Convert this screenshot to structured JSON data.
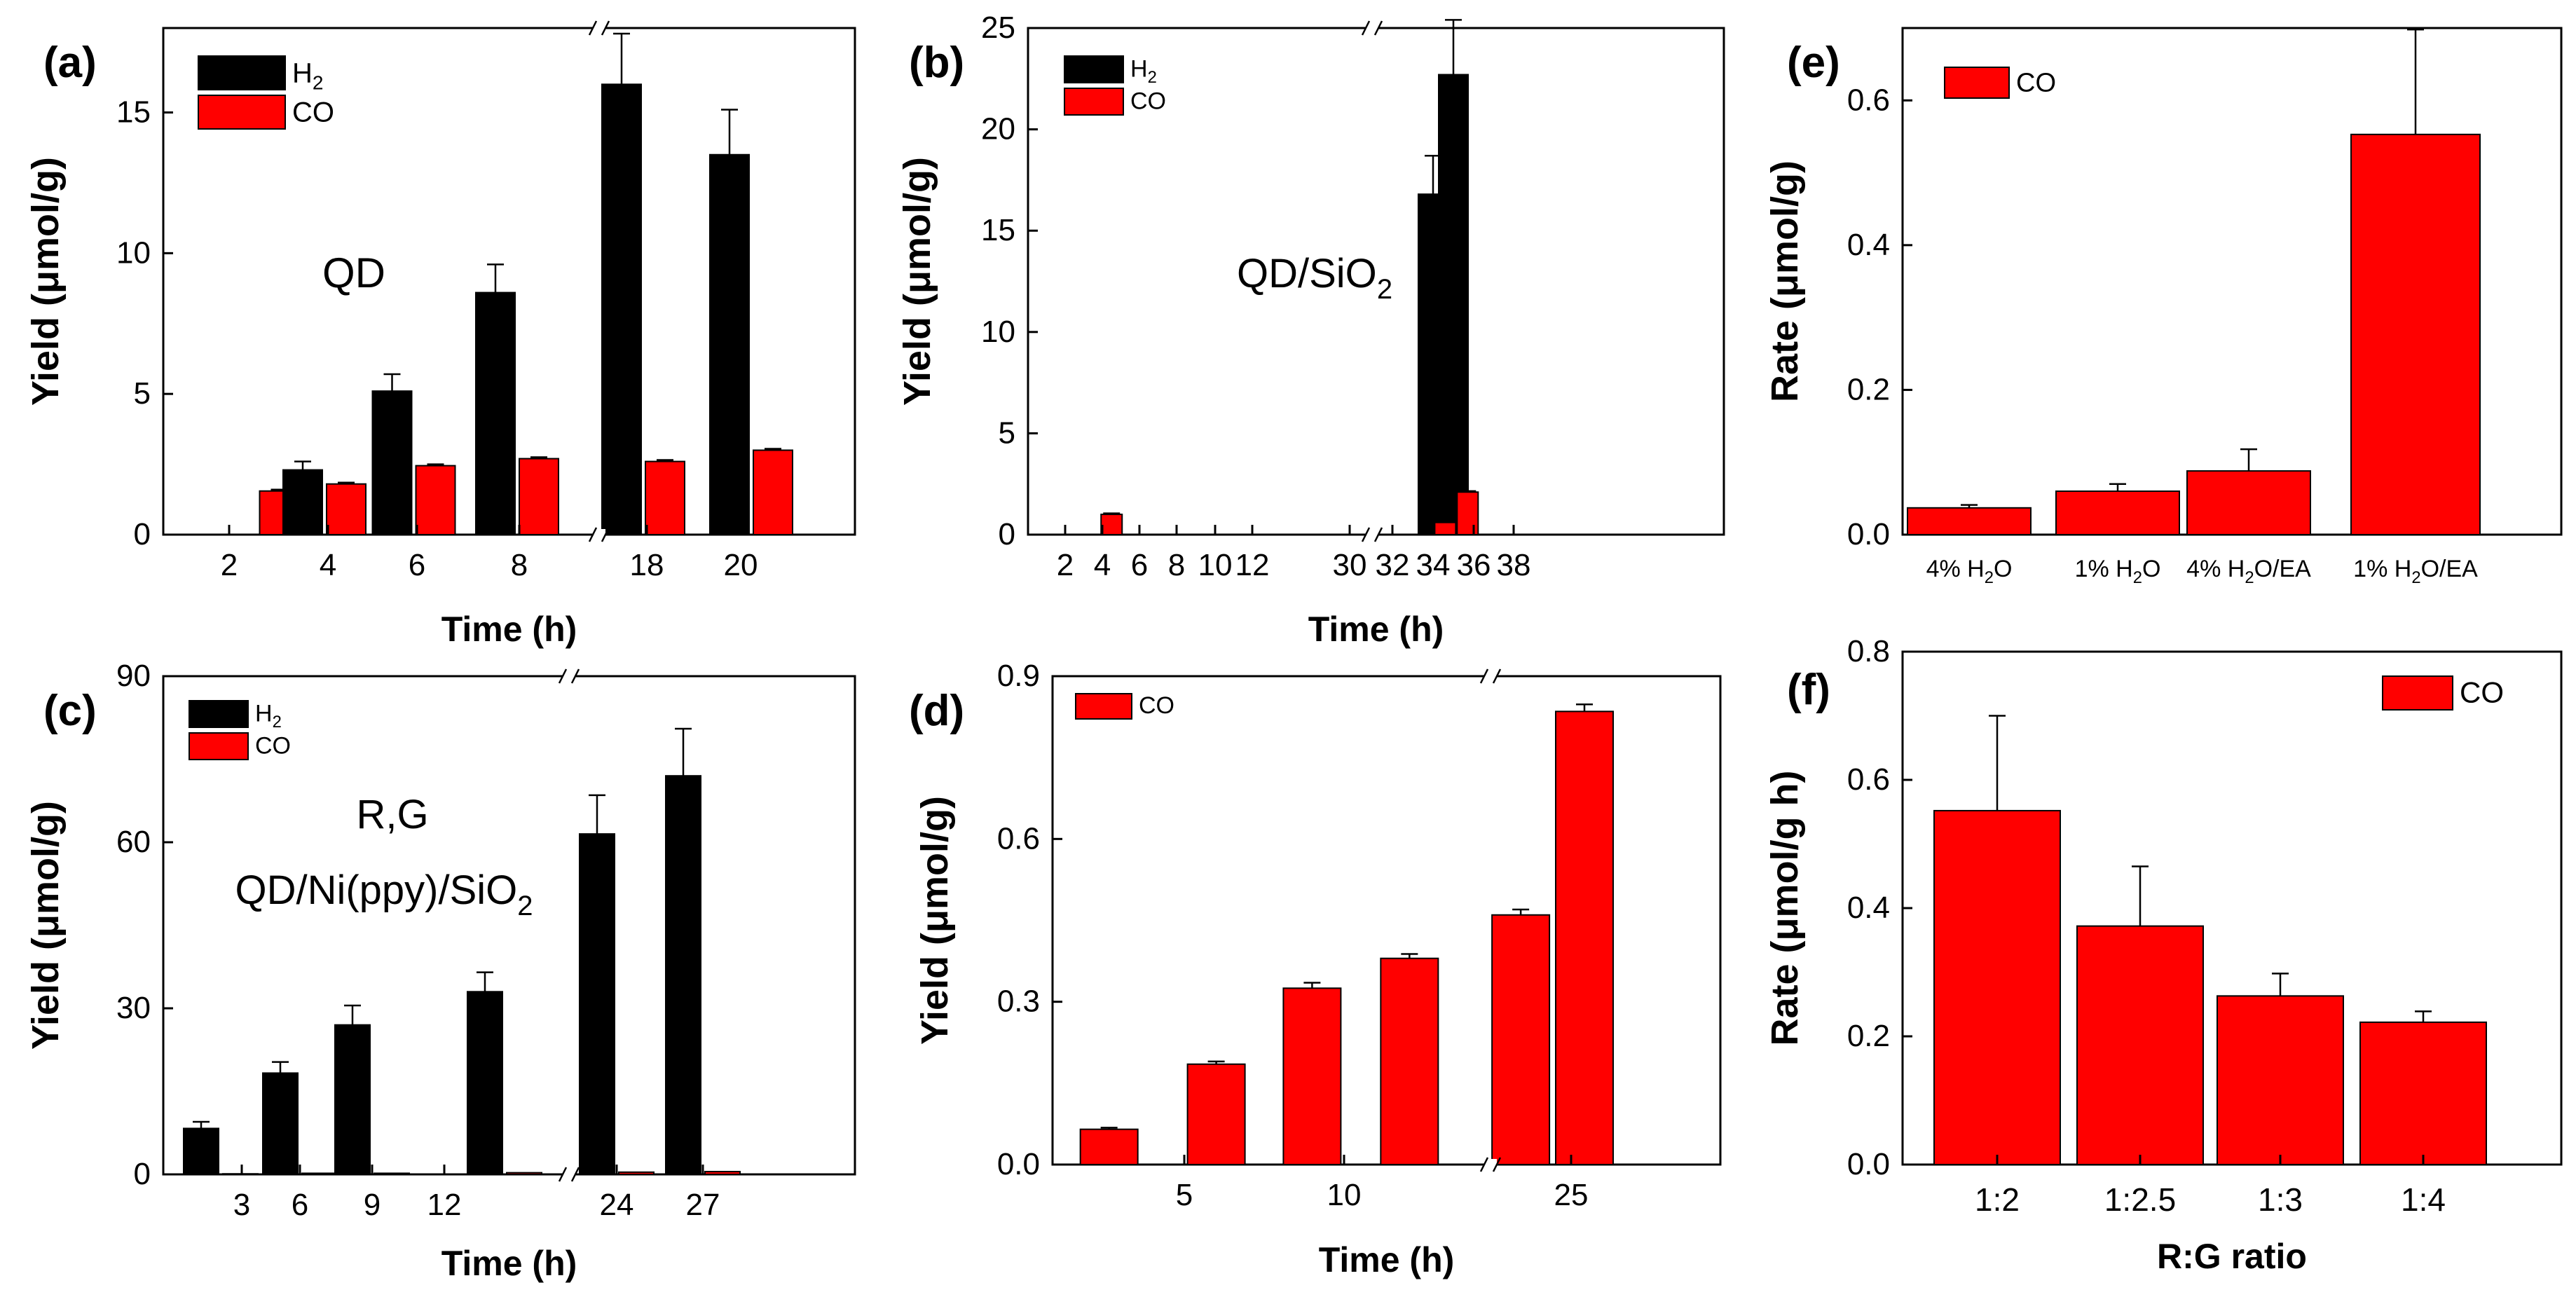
{
  "figure": {
    "colors": {
      "h2": "#000000",
      "co": "#ff0000",
      "axis": "#000000",
      "error": "#000000"
    },
    "subplots": {
      "a": {
        "label": "(a)",
        "annotation": "QD"
      },
      "b": {
        "label": "(b)",
        "annotation_main": "QD/SiO",
        "annotation_sub": "2"
      },
      "c": {
        "label": "(c)",
        "annotation_line1": "R,G",
        "annotation_line2_main": "QD/Ni(ppy)/SiO",
        "annotation_line2_sub": "2"
      },
      "d": {
        "label": "(d)"
      },
      "e": {
        "label": "(e)"
      },
      "f": {
        "label": "(f)"
      }
    }
  },
  "chart_data": [
    {
      "id": "a",
      "type": "bar",
      "title": "",
      "xlabel": "Time (h)",
      "ylabel": "Yield (μmol/g)",
      "ylim": [
        0,
        18
      ],
      "yticks": [
        0,
        5,
        10,
        15
      ],
      "axis_break": "between 8 and 18",
      "categories": [
        "2",
        "4",
        "6",
        "8",
        "18",
        "20"
      ],
      "legend_position": "top-left",
      "series": [
        {
          "name": "H2",
          "color": "#000000",
          "values": [
            0,
            2.3,
            5.1,
            8.6,
            16.0,
            13.5
          ],
          "errors": [
            0,
            0.3,
            0.6,
            1.0,
            1.8,
            1.6
          ]
        },
        {
          "name": "CO",
          "color": "#ff0000",
          "values": [
            1.55,
            1.8,
            2.45,
            2.7,
            2.6,
            3.0
          ],
          "errors": [
            0.05,
            0.05,
            0.05,
            0.05,
            0.05,
            0.05
          ]
        }
      ]
    },
    {
      "id": "b",
      "type": "bar",
      "title": "",
      "xlabel": "Time (h)",
      "ylabel": "Yield (μmol/g)",
      "ylim": [
        0,
        25
      ],
      "yticks": [
        0,
        5,
        10,
        15,
        20,
        25
      ],
      "xticks": [
        "2",
        "4",
        "6",
        "8",
        "10",
        "12",
        "30",
        "32",
        "34",
        "36",
        "38"
      ],
      "axis_break": "between 13 and 29",
      "legend_position": "top-left",
      "series": [
        {
          "name": "H2",
          "color": "#000000",
          "x": [
            34,
            35
          ],
          "values": [
            16.8,
            22.7
          ],
          "errors": [
            1.9,
            2.7
          ]
        },
        {
          "name": "CO",
          "color": "#ff0000",
          "x": [
            4.5,
            34.6,
            35.7
          ],
          "values": [
            1.0,
            0.6,
            2.1
          ],
          "errors": [
            0.05,
            0.05,
            0.05
          ]
        }
      ]
    },
    {
      "id": "c",
      "type": "bar",
      "title": "",
      "xlabel": "Time (h)",
      "ylabel": "Yield (μmol/g)",
      "ylim": [
        0,
        90
      ],
      "yticks": [
        0,
        30,
        60,
        90
      ],
      "axis_break": "between 12 and 24",
      "categories": [
        "3",
        "6",
        "9",
        "12",
        "24",
        "27"
      ],
      "legend_position": "top-left",
      "series": [
        {
          "name": "H2",
          "color": "#000000",
          "values": [
            8.3,
            18.3,
            27.0,
            33.0,
            61.5,
            72.0
          ],
          "errors": [
            1.2,
            2.0,
            3.5,
            3.5,
            7.0,
            8.5
          ]
        },
        {
          "name": "CO",
          "color": "#ff0000",
          "values": [
            0.1,
            0.2,
            0.2,
            0.3,
            0.4,
            0.5
          ],
          "errors": [
            0,
            0,
            0,
            0,
            0,
            0
          ]
        }
      ]
    },
    {
      "id": "d",
      "type": "bar",
      "title": "",
      "xlabel": "Time (h)",
      "ylabel": "Yield (μmol/g)",
      "ylim": [
        0,
        0.9
      ],
      "yticks": [
        "0.0",
        "0.3",
        "0.6",
        "0.9"
      ],
      "xticks": [
        "5",
        "10",
        "25"
      ],
      "axis_break": "between 13 and 21",
      "legend_position": "top-left",
      "series": [
        {
          "name": "CO",
          "color": "#ff0000",
          "x": [
            3,
            6,
            9,
            12,
            22.5,
            25.5
          ],
          "values": [
            0.065,
            0.185,
            0.325,
            0.38,
            0.46,
            0.835
          ],
          "errors": [
            0.003,
            0.005,
            0.01,
            0.008,
            0.01,
            0.013
          ]
        }
      ]
    },
    {
      "id": "e",
      "type": "bar",
      "title": "",
      "xlabel": "",
      "ylabel": "Rate (μmol/g)",
      "ylim": [
        0,
        0.7
      ],
      "yticks": [
        "0.0",
        "0.2",
        "0.4",
        "0.6"
      ],
      "categories": [
        {
          "pre": "4% H",
          "sub": "2",
          "post": "O"
        },
        {
          "pre": "1% H",
          "sub": "2",
          "post": "O"
        },
        {
          "pre": "4% H",
          "sub": "2",
          "post": "O/EA"
        },
        {
          "pre": "1% H",
          "sub": "2",
          "post": "O/EA"
        }
      ],
      "legend_position": "top-left",
      "series": [
        {
          "name": "CO",
          "color": "#ff0000",
          "values": [
            0.037,
            0.06,
            0.088,
            0.553
          ],
          "errors": [
            0.004,
            0.01,
            0.03,
            0.145
          ]
        }
      ]
    },
    {
      "id": "f",
      "type": "bar",
      "title": "",
      "xlabel": "R:G ratio",
      "ylabel": "Rate (μmol/g h)",
      "ylim": [
        0,
        0.8
      ],
      "yticks": [
        "0.0",
        "0.2",
        "0.4",
        "0.6",
        "0.8"
      ],
      "categories": [
        "1:2",
        "1:2.5",
        "1:3",
        "1:4"
      ],
      "legend_position": "top-right",
      "series": [
        {
          "name": "CO",
          "color": "#ff0000",
          "values": [
            0.552,
            0.372,
            0.263,
            0.222
          ],
          "errors": [
            0.148,
            0.093,
            0.035,
            0.017
          ]
        }
      ]
    }
  ]
}
